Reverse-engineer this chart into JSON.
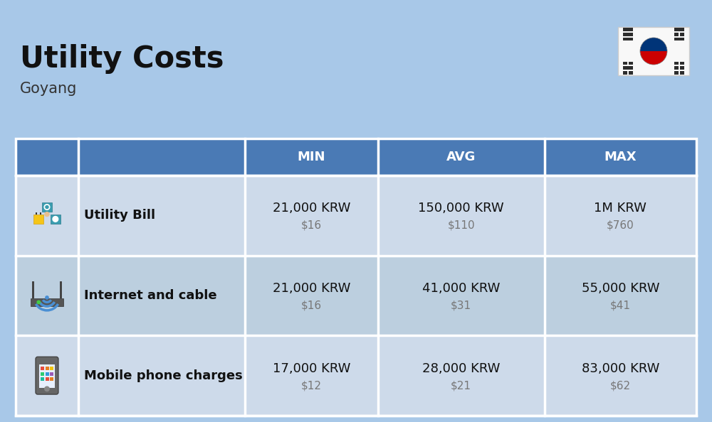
{
  "title": "Utility Costs",
  "subtitle": "Goyang",
  "background_color": "#a8c8e8",
  "header_bg_color": "#4a7ab5",
  "header_text_color": "#ffffff",
  "row_bg_color_odd": "#cddaea",
  "row_bg_color_even": "#bccfdf",
  "table_border_color": "#ffffff",
  "columns": [
    "",
    "",
    "MIN",
    "AVG",
    "MAX"
  ],
  "rows": [
    {
      "label": "Utility Bill",
      "min_krw": "21,000 KRW",
      "min_usd": "$16",
      "avg_krw": "150,000 KRW",
      "avg_usd": "$110",
      "max_krw": "1M KRW",
      "max_usd": "$760"
    },
    {
      "label": "Internet and cable",
      "min_krw": "21,000 KRW",
      "min_usd": "$16",
      "avg_krw": "41,000 KRW",
      "avg_usd": "$31",
      "max_krw": "55,000 KRW",
      "max_usd": "$41"
    },
    {
      "label": "Mobile phone charges",
      "min_krw": "17,000 KRW",
      "min_usd": "$12",
      "avg_krw": "28,000 KRW",
      "avg_usd": "$21",
      "max_krw": "83,000 KRW",
      "max_usd": "$62"
    }
  ],
  "title_fontsize": 30,
  "subtitle_fontsize": 15,
  "header_fontsize": 13,
  "label_fontsize": 13,
  "value_fontsize": 13,
  "usd_fontsize": 11,
  "flag_bg": "#f5f5f5",
  "flag_red": "#cc0001",
  "flag_blue": "#003478",
  "flag_black": "#2d2d2d"
}
